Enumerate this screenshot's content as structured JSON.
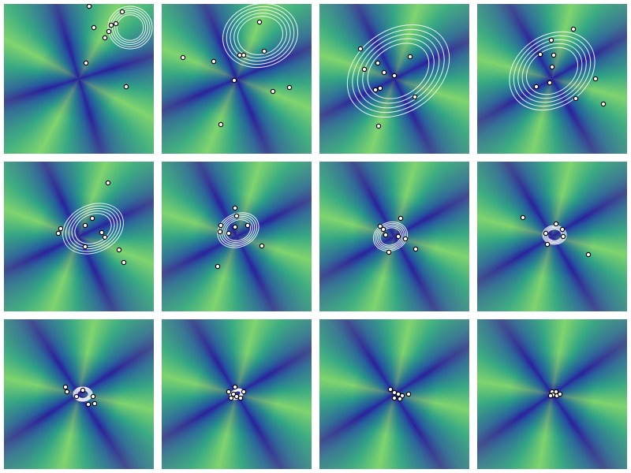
{
  "chart_data": [
    {
      "type": "scatter",
      "xlim": [
        0,
        190
      ],
      "ylim": [
        0,
        190
      ],
      "x": [
        108,
        114,
        133,
        136,
        142,
        150,
        128,
        104,
        155
      ],
      "y": [
        187,
        160,
        155,
        163,
        165,
        180,
        147,
        115,
        85
      ],
      "ellipse": {
        "cx": 160,
        "cy": 160,
        "rx": 28,
        "ry": 27,
        "angle": 0
      }
    },
    {
      "type": "scatter",
      "xlim": [
        0,
        190
      ],
      "ylim": [
        0,
        190
      ],
      "x": [
        27,
        66,
        99,
        104,
        130,
        124,
        92,
        75,
        141,
        162
      ],
      "y": [
        122,
        117,
        125,
        125,
        130,
        167,
        93,
        37,
        79,
        84
      ],
      "ellipse": {
        "cx": 125,
        "cy": 150,
        "rx": 48,
        "ry": 40,
        "angle": -15
      }
    },
    {
      "type": "scatter",
      "xlim": [
        0,
        190
      ],
      "ylim": [
        0,
        190
      ],
      "x": [
        52,
        74,
        57,
        82,
        95,
        115,
        71,
        77,
        121,
        75
      ],
      "y": [
        133,
        115,
        107,
        103,
        99,
        123,
        81,
        83,
        72,
        35
      ],
      "ellipse": {
        "cx": 100,
        "cy": 105,
        "rx": 70,
        "ry": 52,
        "angle": -35
      }
    },
    {
      "type": "scatter",
      "xlim": [
        0,
        190
      ],
      "ylim": [
        0,
        190
      ],
      "x": [
        122,
        94,
        80,
        97,
        95,
        75,
        125,
        150,
        160,
        92
      ],
      "y": [
        158,
        144,
        126,
        125,
        110,
        85,
        70,
        95,
        63,
        90
      ],
      "ellipse": {
        "cx": 95,
        "cy": 105,
        "rx": 58,
        "ry": 45,
        "angle": -35
      }
    },
    {
      "type": "scatter",
      "xlim": [
        0,
        190
      ],
      "ylim": [
        0,
        190
      ],
      "x": [
        132,
        112,
        103,
        124,
        128,
        103,
        72,
        69,
        146,
        152
      ],
      "y": [
        163,
        118,
        109,
        100,
        94,
        82,
        105,
        99,
        78,
        62
      ],
      "ellipse": {
        "cx": 113,
        "cy": 105,
        "rx": 40,
        "ry": 30,
        "angle": -25
      }
    },
    {
      "type": "scatter",
      "xlim": [
        0,
        190
      ],
      "ylim": [
        0,
        190
      ],
      "x": [
        93,
        95,
        93,
        109,
        75,
        74,
        85,
        127,
        71
      ],
      "y": [
        131,
        121,
        107,
        109,
        109,
        101,
        99,
        83,
        57
      ],
      "ellipse": {
        "cx": 97,
        "cy": 103,
        "rx": 27,
        "ry": 21,
        "angle": -25
      }
    },
    {
      "type": "scatter",
      "xlim": [
        0,
        190
      ],
      "ylim": [
        0,
        190
      ],
      "x": [
        103,
        77,
        81,
        84,
        100,
        109,
        88,
        122
      ],
      "y": [
        118,
        108,
        104,
        97,
        95,
        92,
        75,
        79
      ],
      "ellipse": {
        "cx": 90,
        "cy": 95,
        "rx": 22,
        "ry": 18,
        "angle": -20
      }
    },
    {
      "type": "scatter",
      "xlim": [
        0,
        190
      ],
      "ylim": [
        0,
        190
      ],
      "x": [
        58,
        100,
        108,
        87,
        109,
        89,
        141
      ],
      "y": [
        119,
        111,
        104,
        99,
        95,
        85,
        72
      ],
      "ellipse": {
        "cx": 98,
        "cy": 97,
        "rx": 15,
        "ry": 12,
        "angle": 0
      }
    },
    {
      "type": "scatter",
      "xlim": [
        0,
        190
      ],
      "ylim": [
        0,
        190
      ],
      "x": [
        78,
        80,
        100,
        113,
        115,
        107,
        92
      ],
      "y": [
        104,
        98,
        100,
        92,
        83,
        82,
        92
      ],
      "ellipse": {
        "cx": 100,
        "cy": 95,
        "rx": 12,
        "ry": 9,
        "angle": 0
      }
    },
    {
      "type": "scatter",
      "xlim": [
        0,
        190
      ],
      "ylim": [
        0,
        190
      ],
      "x": [
        93,
        85,
        91,
        95,
        104,
        100,
        88
      ],
      "y": [
        104,
        98,
        95,
        92,
        98,
        90,
        90
      ],
      "ellipse": {
        "cx": 95,
        "cy": 95,
        "rx": 9,
        "ry": 6,
        "angle": -30
      }
    },
    {
      "type": "scatter",
      "xlim": [
        0,
        190
      ],
      "ylim": [
        0,
        190
      ],
      "x": [
        90,
        95,
        100,
        105,
        113,
        102,
        95
      ],
      "y": [
        101,
        97,
        95,
        93,
        95,
        89,
        90
      ]
    },
    {
      "type": "scatter",
      "xlim": [
        0,
        190
      ],
      "ylim": [
        0,
        190
      ],
      "x": [
        95,
        100,
        96,
        101,
        105,
        93
      ],
      "y": [
        98,
        98,
        94,
        93,
        95,
        93
      ]
    }
  ]
}
